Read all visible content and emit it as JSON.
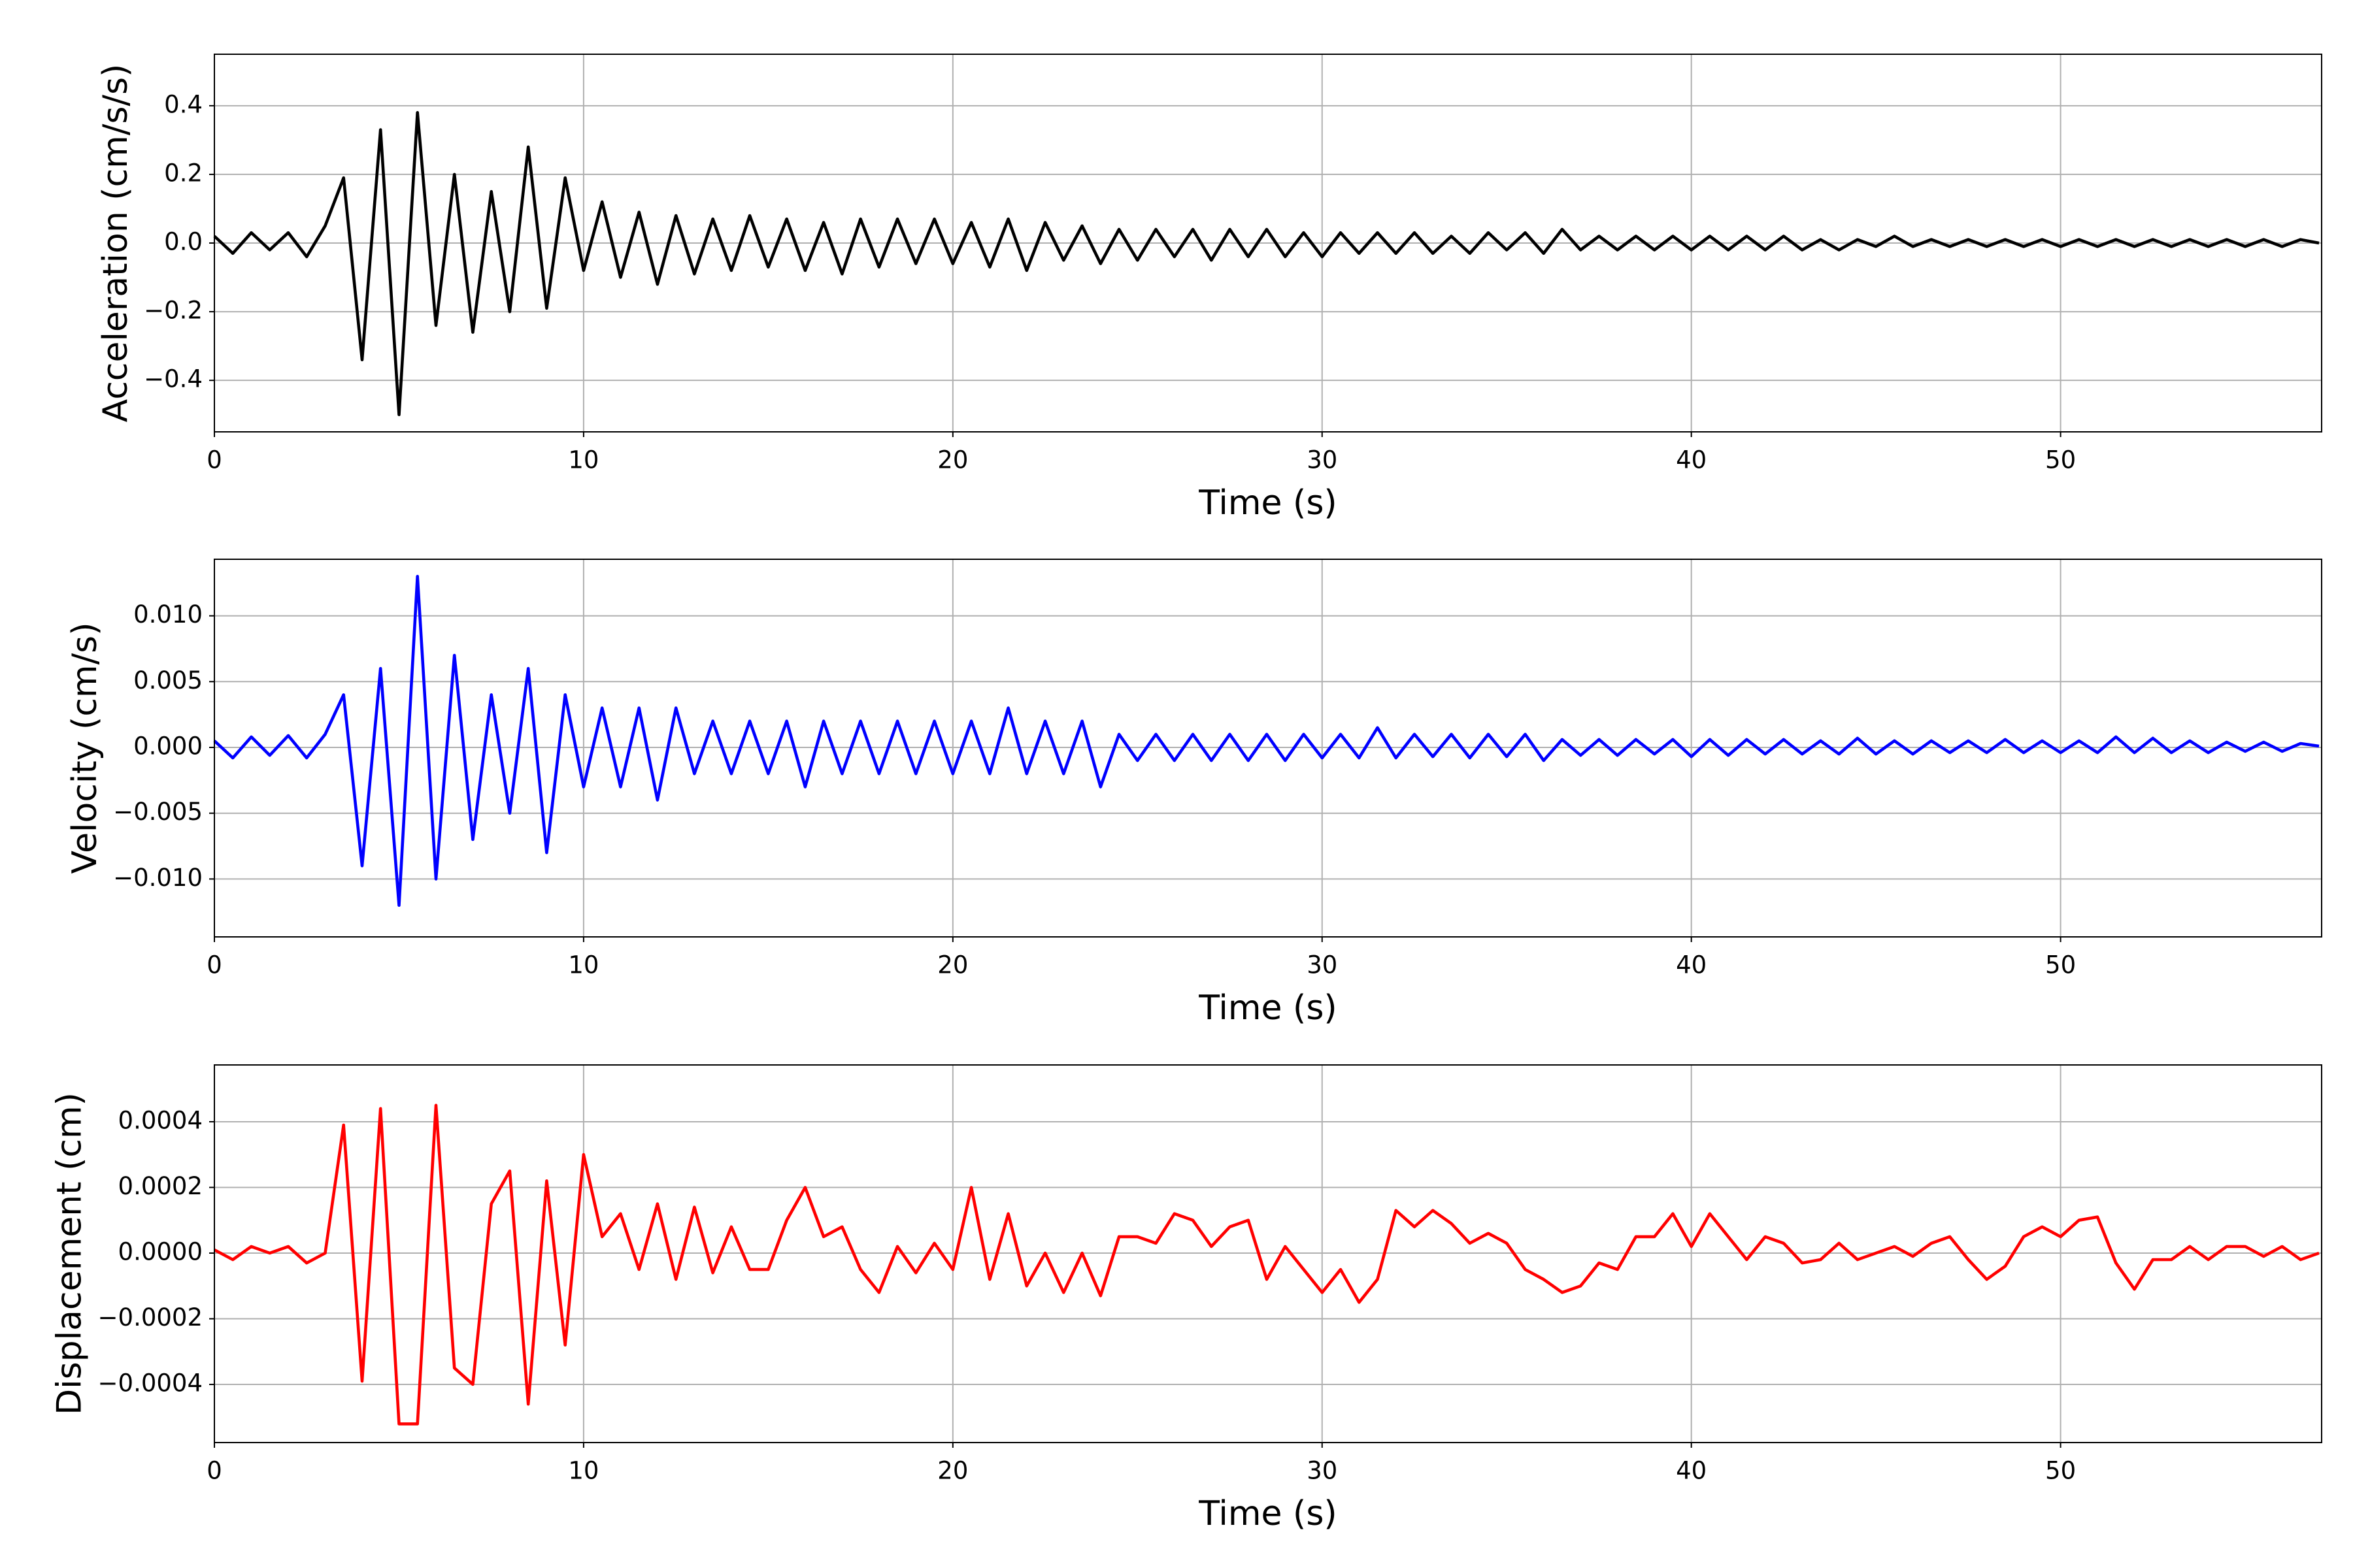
{
  "chart_data": [
    {
      "type": "line",
      "xlabel": "Time (s)",
      "ylabel": "Acceleration (cm/s/s)",
      "color": "#000000",
      "grid": true,
      "xlim": [
        0,
        57.07
      ],
      "xticks": [
        0,
        10,
        20,
        30,
        40,
        50
      ],
      "ylim": [
        -0.55,
        0.55
      ],
      "yticks": [
        {
          "value": -0.4,
          "label": "−0.4"
        },
        {
          "value": -0.2,
          "label": "−0.2"
        },
        {
          "value": 0,
          "label": "0.0"
        },
        0.2,
        0.4
      ],
      "x": [
        0,
        0.5,
        1,
        1.5,
        2,
        2.5,
        3,
        3.5,
        4,
        4.5,
        5,
        5.5,
        6,
        6.5,
        7,
        7.5,
        8,
        8.5,
        9,
        9.5,
        10,
        10.5,
        11,
        11.5,
        12,
        12.5,
        13,
        13.5,
        14,
        14.5,
        15,
        15.5,
        16,
        16.5,
        17,
        17.5,
        18,
        18.5,
        19,
        19.5,
        20,
        20.5,
        21,
        21.5,
        22,
        22.5,
        23,
        23.5,
        24,
        24.5,
        25,
        25.5,
        26,
        26.5,
        27,
        27.5,
        28,
        28.5,
        29,
        29.5,
        30,
        30.5,
        31,
        31.5,
        32,
        32.5,
        33,
        33.5,
        34,
        34.5,
        35,
        35.5,
        36,
        36.5,
        37,
        37.5,
        38,
        38.5,
        39,
        39.5,
        40,
        40.5,
        41,
        41.5,
        42,
        42.5,
        43,
        43.5,
        44,
        44.5,
        45,
        45.5,
        46,
        46.5,
        47,
        47.5,
        48,
        48.5,
        49,
        49.5,
        50,
        50.5,
        51,
        51.5,
        52,
        52.5,
        53,
        53.5,
        54,
        54.5,
        55,
        55.5,
        56,
        56.5,
        57
      ],
      "values": [
        0.02,
        -0.03,
        0.03,
        -0.02,
        0.03,
        -0.04,
        0.05,
        0.19,
        -0.34,
        0.33,
        -0.5,
        0.38,
        -0.24,
        0.2,
        -0.26,
        0.15,
        -0.2,
        0.28,
        -0.19,
        0.19,
        -0.08,
        0.12,
        -0.1,
        0.09,
        -0.12,
        0.08,
        -0.09,
        0.07,
        -0.08,
        0.08,
        -0.07,
        0.07,
        -0.08,
        0.06,
        -0.09,
        0.07,
        -0.07,
        0.07,
        -0.06,
        0.07,
        -0.06,
        0.06,
        -0.07,
        0.07,
        -0.08,
        0.06,
        -0.05,
        0.05,
        -0.06,
        0.04,
        -0.05,
        0.04,
        -0.04,
        0.04,
        -0.05,
        0.04,
        -0.04,
        0.04,
        -0.04,
        0.03,
        -0.04,
        0.03,
        -0.03,
        0.03,
        -0.03,
        0.03,
        -0.03,
        0.02,
        -0.03,
        0.03,
        -0.02,
        0.03,
        -0.03,
        0.04,
        -0.02,
        0.02,
        -0.02,
        0.02,
        -0.02,
        0.02,
        -0.02,
        0.02,
        -0.02,
        0.02,
        -0.02,
        0.02,
        -0.02,
        0.01,
        -0.02,
        0.01,
        -0.01,
        0.02,
        -0.01,
        0.01,
        -0.01,
        0.01,
        -0.01,
        0.01,
        -0.01,
        0.01,
        -0.01,
        0.01,
        -0.01,
        0.01,
        -0.01,
        0.01,
        -0.01,
        0.01,
        -0.01,
        0.01,
        -0.01,
        0.01,
        -0.01,
        0.01,
        0
      ]
    },
    {
      "type": "line",
      "xlabel": "Time (s)",
      "ylabel": "Velocity (cm/s)",
      "color": "#0000ff",
      "grid": true,
      "xlim": [
        0,
        57.07
      ],
      "xticks": [
        0,
        10,
        20,
        30,
        40,
        50
      ],
      "ylim": [
        -0.0144,
        0.0143
      ],
      "yticks": [
        {
          "value": -0.01,
          "label": "−0.010"
        },
        {
          "value": -0.005,
          "label": "−0.005"
        },
        {
          "value": 0,
          "label": "0.000"
        },
        {
          "value": 0.005,
          "label": "0.005"
        },
        {
          "value": 0.01,
          "label": "0.010"
        }
      ],
      "x": [
        0,
        0.5,
        1,
        1.5,
        2,
        2.5,
        3,
        3.5,
        4,
        4.5,
        5,
        5.5,
        6,
        6.5,
        7,
        7.5,
        8,
        8.5,
        9,
        9.5,
        10,
        10.5,
        11,
        11.5,
        12,
        12.5,
        13,
        13.5,
        14,
        14.5,
        15,
        15.5,
        16,
        16.5,
        17,
        17.5,
        18,
        18.5,
        19,
        19.5,
        20,
        20.5,
        21,
        21.5,
        22,
        22.5,
        23,
        23.5,
        24,
        24.5,
        25,
        25.5,
        26,
        26.5,
        27,
        27.5,
        28,
        28.5,
        29,
        29.5,
        30,
        30.5,
        31,
        31.5,
        32,
        32.5,
        33,
        33.5,
        34,
        34.5,
        35,
        35.5,
        36,
        36.5,
        37,
        37.5,
        38,
        38.5,
        39,
        39.5,
        40,
        40.5,
        41,
        41.5,
        42,
        42.5,
        43,
        43.5,
        44,
        44.5,
        45,
        45.5,
        46,
        46.5,
        47,
        47.5,
        48,
        48.5,
        49,
        49.5,
        50,
        50.5,
        51,
        51.5,
        52,
        52.5,
        53,
        53.5,
        54,
        54.5,
        55,
        55.5,
        56,
        56.5,
        57
      ],
      "values": [
        0.0005,
        -0.0008,
        0.0008,
        -0.0006,
        0.0009,
        -0.0008,
        0.001,
        0.004,
        -0.009,
        0.006,
        -0.012,
        0.013,
        -0.01,
        0.007,
        -0.007,
        0.004,
        -0.005,
        0.006,
        -0.008,
        0.004,
        -0.003,
        0.003,
        -0.003,
        0.003,
        -0.004,
        0.003,
        -0.002,
        0.002,
        -0.002,
        0.002,
        -0.002,
        0.002,
        -0.003,
        0.002,
        -0.002,
        0.002,
        -0.002,
        0.002,
        -0.002,
        0.002,
        -0.002,
        0.002,
        -0.002,
        0.003,
        -0.002,
        0.002,
        -0.002,
        0.002,
        -0.003,
        0.001,
        -0.001,
        0.001,
        -0.001,
        0.001,
        -0.001,
        0.001,
        -0.001,
        0.001,
        -0.001,
        0.001,
        -0.0008,
        0.001,
        -0.0008,
        0.0015,
        -0.0008,
        0.001,
        -0.0007,
        0.001,
        -0.0008,
        0.001,
        -0.0007,
        0.001,
        -0.001,
        0.0006,
        -0.0006,
        0.0006,
        -0.0006,
        0.0006,
        -0.0005,
        0.0006,
        -0.0007,
        0.0006,
        -0.0006,
        0.0006,
        -0.0005,
        0.0006,
        -0.0005,
        0.0005,
        -0.0005,
        0.0007,
        -0.0005,
        0.0005,
        -0.0005,
        0.0005,
        -0.0004,
        0.0005,
        -0.0004,
        0.0006,
        -0.0004,
        0.0005,
        -0.0004,
        0.0005,
        -0.0004,
        0.0008,
        -0.0004,
        0.0007,
        -0.0004,
        0.0005,
        -0.0004,
        0.0004,
        -0.0003,
        0.0004,
        -0.0003,
        0.0003,
        0.0001
      ]
    },
    {
      "type": "line",
      "xlabel": "Time (s)",
      "ylabel": "Displacement (cm)",
      "color": "#ff0000",
      "grid": true,
      "xlim": [
        0,
        57.07
      ],
      "xticks": [
        0,
        10,
        20,
        30,
        40,
        50
      ],
      "ylim": [
        -0.000577,
        0.000573
      ],
      "yticks": [
        {
          "value": -0.0004,
          "label": "−0.0004"
        },
        {
          "value": -0.0002,
          "label": "−0.0002"
        },
        {
          "value": 0,
          "label": "0.0000"
        },
        0.0002,
        0.0004
      ],
      "x": [
        0,
        0.5,
        1,
        1.5,
        2,
        2.5,
        3,
        3.5,
        4,
        4.5,
        5,
        5.5,
        6,
        6.5,
        7,
        7.5,
        8,
        8.5,
        9,
        9.5,
        10,
        10.5,
        11,
        11.5,
        12,
        12.5,
        13,
        13.5,
        14,
        14.5,
        15,
        15.5,
        16,
        16.5,
        17,
        17.5,
        18,
        18.5,
        19,
        19.5,
        20,
        20.5,
        21,
        21.5,
        22,
        22.5,
        23,
        23.5,
        24,
        24.5,
        25,
        25.5,
        26,
        26.5,
        27,
        27.5,
        28,
        28.5,
        29,
        29.5,
        30,
        30.5,
        31,
        31.5,
        32,
        32.5,
        33,
        33.5,
        34,
        34.5,
        35,
        35.5,
        36,
        36.5,
        37,
        37.5,
        38,
        38.5,
        39,
        39.5,
        40,
        40.5,
        41,
        41.5,
        42,
        42.5,
        43,
        43.5,
        44,
        44.5,
        45,
        45.5,
        46,
        46.5,
        47,
        47.5,
        48,
        48.5,
        49,
        49.5,
        50,
        50.5,
        51,
        51.5,
        52,
        52.5,
        53,
        53.5,
        54,
        54.5,
        55,
        55.5,
        56,
        56.5,
        57
      ],
      "values": [
        1e-05,
        -2e-05,
        2e-05,
        0,
        2e-05,
        -3e-05,
        0,
        0.00039,
        -0.00039,
        0.00044,
        -0.00052,
        -0.00052,
        0.00045,
        -0.00035,
        -0.0004,
        0.00015,
        0.00025,
        -0.00046,
        0.00022,
        -0.00028,
        0.0003,
        5e-05,
        0.00012,
        -5e-05,
        0.00015,
        -8e-05,
        0.00014,
        -6e-05,
        8e-05,
        -5e-05,
        -5e-05,
        0.0001,
        0.0002,
        5e-05,
        8e-05,
        -5e-05,
        -0.00012,
        2e-05,
        -6e-05,
        3e-05,
        -5e-05,
        0.0002,
        -8e-05,
        0.00012,
        -0.0001,
        0,
        -0.00012,
        0,
        -0.00013,
        5e-05,
        5e-05,
        3e-05,
        0.00012,
        0.0001,
        2e-05,
        8e-05,
        0.0001,
        -8e-05,
        2e-05,
        -5e-05,
        -0.00012,
        -5e-05,
        -0.00015,
        -8e-05,
        0.00013,
        8e-05,
        0.00013,
        9e-05,
        3e-05,
        6e-05,
        3e-05,
        -5e-05,
        -8e-05,
        -0.00012,
        -0.0001,
        -3e-05,
        -5e-05,
        5e-05,
        5e-05,
        0.00012,
        2e-05,
        0.00012,
        5e-05,
        -2e-05,
        5e-05,
        3e-05,
        -3e-05,
        -2e-05,
        3e-05,
        -2e-05,
        0,
        2e-05,
        -1e-05,
        3e-05,
        5e-05,
        -2e-05,
        -8e-05,
        -4e-05,
        5e-05,
        8e-05,
        5e-05,
        0.0001,
        0.00011,
        -3e-05,
        -0.00011,
        -2e-05,
        -2e-05,
        2e-05,
        -2e-05,
        2e-05,
        2e-05,
        -1e-05,
        2e-05,
        -2e-05,
        0
      ]
    }
  ]
}
